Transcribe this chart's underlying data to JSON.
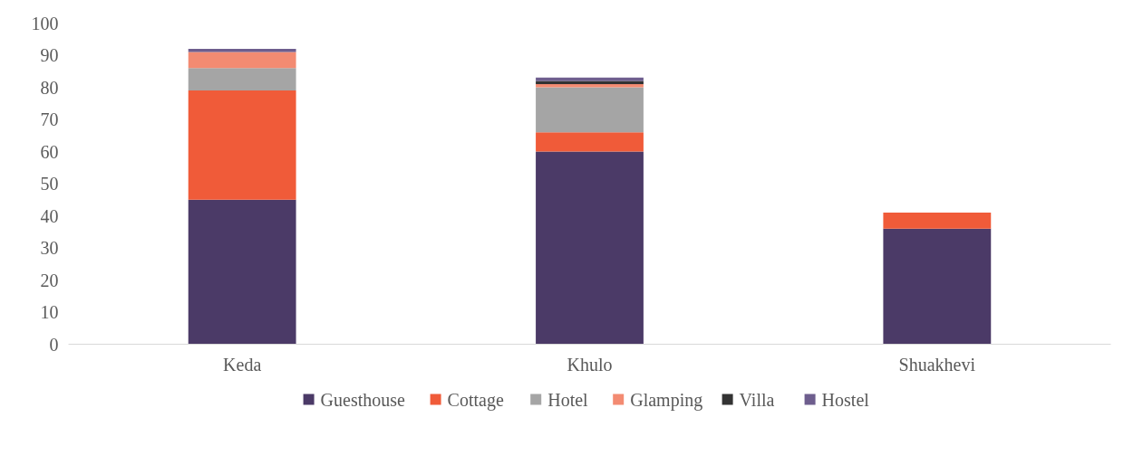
{
  "chart_data": {
    "type": "bar",
    "stacked": true,
    "categories": [
      "Keda",
      "Khulo",
      "Shuakhevi"
    ],
    "series": [
      {
        "name": "Guesthouse",
        "color": "#4b3a67",
        "values": [
          45,
          60,
          36
        ]
      },
      {
        "name": "Cottage",
        "color": "#f05b39",
        "values": [
          34,
          6,
          5
        ]
      },
      {
        "name": "Hotel",
        "color": "#a5a5a5",
        "values": [
          7,
          14,
          0
        ]
      },
      {
        "name": "Glamping",
        "color": "#f38b72",
        "values": [
          5,
          1,
          0
        ]
      },
      {
        "name": "Villa",
        "color": "#333333",
        "values": [
          0,
          1,
          0
        ]
      },
      {
        "name": "Hostel",
        "color": "#6e5e8e",
        "values": [
          1,
          1,
          0
        ]
      }
    ],
    "ylim": [
      0,
      100
    ],
    "yticks": [
      0,
      10,
      20,
      30,
      40,
      50,
      60,
      70,
      80,
      90,
      100
    ],
    "grid": false,
    "legend": "bottom"
  }
}
